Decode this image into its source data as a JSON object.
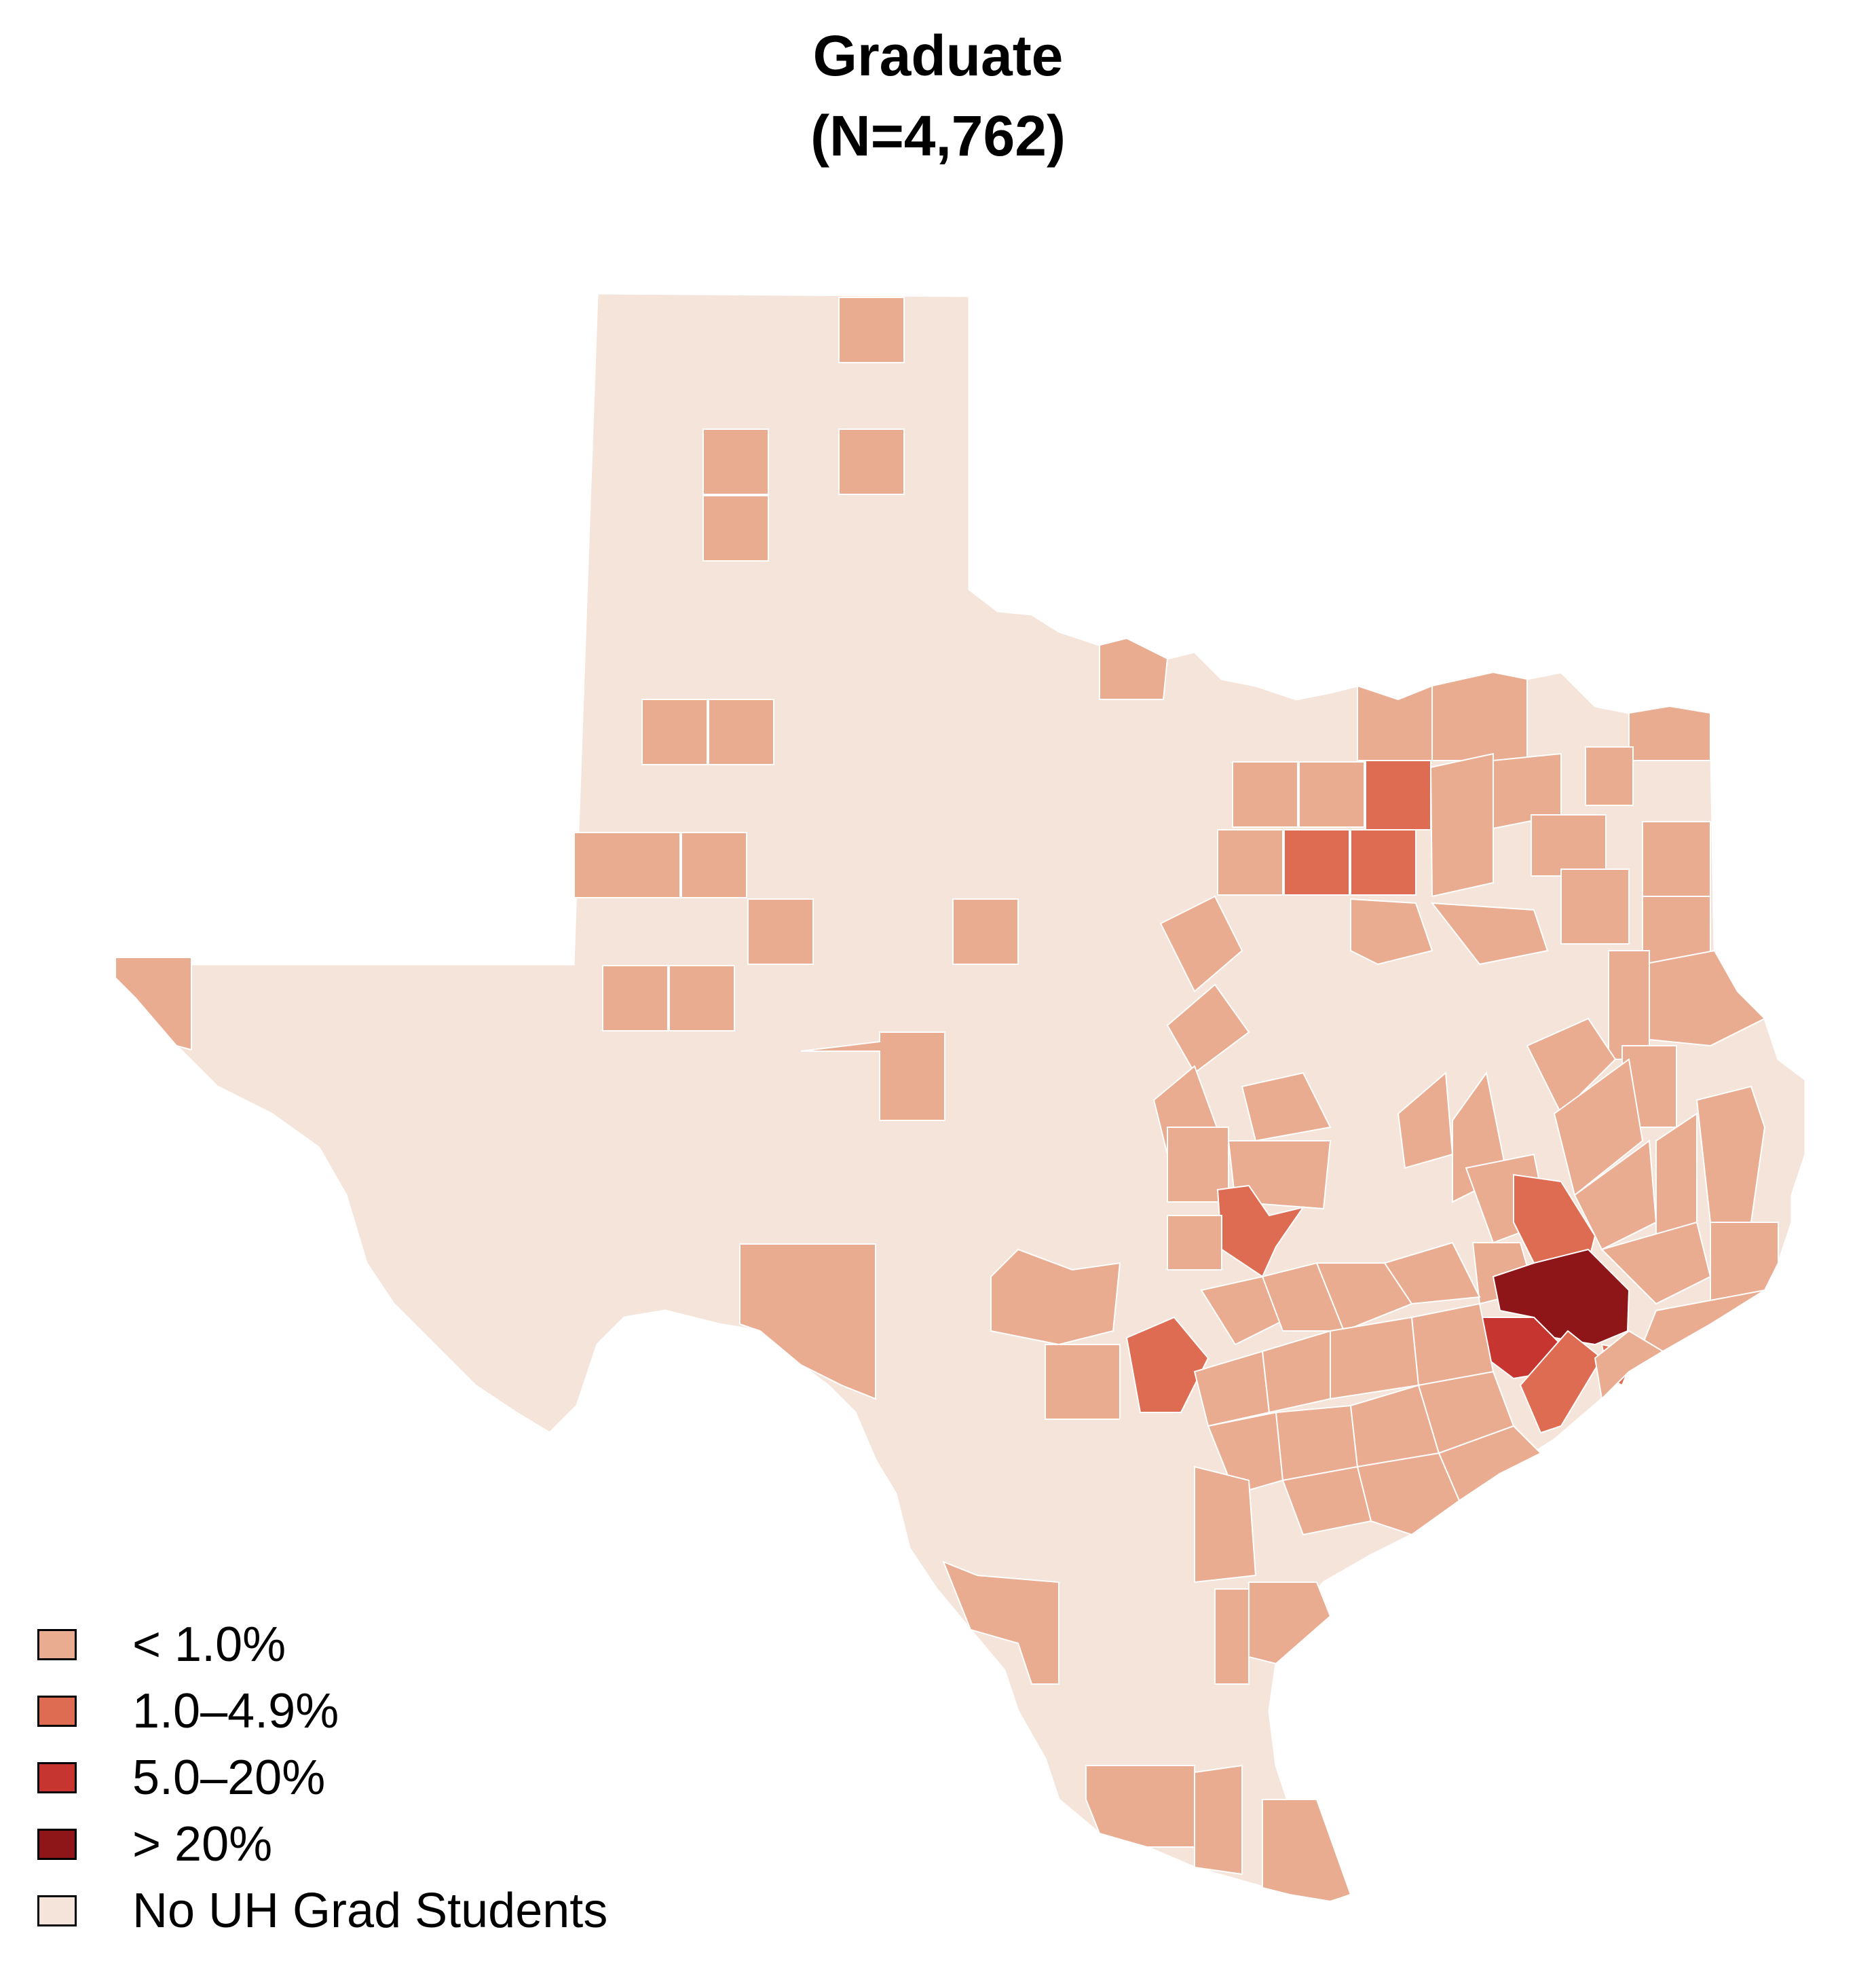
{
  "title": "Graduate",
  "subtitle": "(N=4,762)",
  "colors": {
    "lt1": "#e9ac90",
    "c1to5": "#de6c52",
    "c5to20": "#c63530",
    "gt20": "#8e1619",
    "none": "#f5e4da",
    "border": "#ffffff"
  },
  "legend": [
    {
      "key": "lt1",
      "label": "< 1.0%"
    },
    {
      "key": "c1to5",
      "label": "1.0–4.9%"
    },
    {
      "key": "c5to20",
      "label": "5.0–20%"
    },
    {
      "key": "gt20",
      "label": "> 20%"
    },
    {
      "key": "none",
      "label": "No UH Grad Students"
    }
  ]
}
